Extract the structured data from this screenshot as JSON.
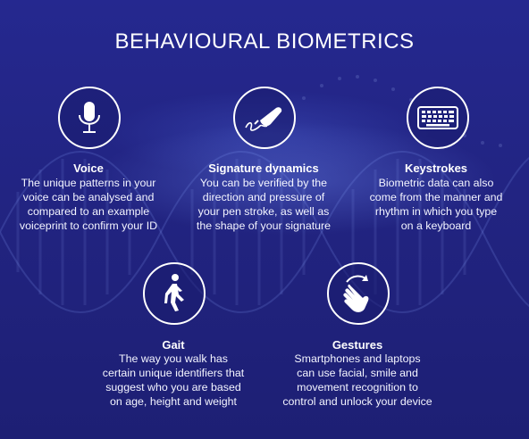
{
  "title": "BEHAVIOURAL BIOMETRICS",
  "colors": {
    "background": "#22258a",
    "icon_stroke": "#ffffff",
    "text": "#ffffff"
  },
  "items": [
    {
      "icon": "microphone-icon",
      "label": "Voice",
      "lines": [
        "The unique patterns in your",
        "voice can be analysed and",
        "compared to an example",
        "voiceprint to confirm your ID"
      ]
    },
    {
      "icon": "signature-icon",
      "label": "Signature dynamics",
      "lines": [
        "You can be verified by the",
        "direction and pressure of",
        "your pen stroke, as well as",
        "the shape of your signature"
      ]
    },
    {
      "icon": "keyboard-icon",
      "label": "Keystrokes",
      "lines": [
        "Biometric data can also",
        "come from the manner and",
        "rhythm in which you type",
        "on a keyboard"
      ]
    },
    {
      "icon": "walking-person-icon",
      "label": "Gait",
      "lines": [
        "The way you walk has",
        "certain unique identifiers that",
        "suggest who you are based",
        "on age, height and weight"
      ]
    },
    {
      "icon": "hand-gesture-icon",
      "label": "Gestures",
      "lines": [
        "Smartphones and laptops",
        "can use facial, smile and",
        "movement recognition to",
        "control and unlock your device"
      ]
    }
  ]
}
